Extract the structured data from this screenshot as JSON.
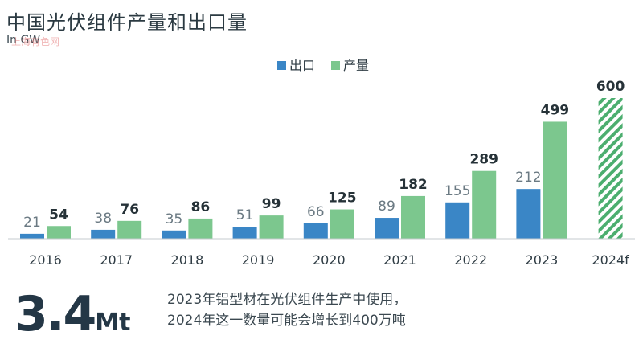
{
  "header": {
    "title": "中国光伏组件产量和出口量",
    "subtitle": "In GW",
    "watermark": "上海有色网"
  },
  "colors": {
    "export": "#3a86c6",
    "production": "#7cc78e",
    "forecast": "#4cae6f",
    "label_export": "#6b7a83",
    "label_production": "#263238",
    "axis": "#c5cbcf"
  },
  "chart_data": {
    "type": "bar",
    "categories": [
      "2016",
      "2017",
      "2018",
      "2019",
      "2020",
      "2021",
      "2022",
      "2023",
      "2024f"
    ],
    "series": [
      {
        "name": "出口",
        "values": [
          21,
          38,
          35,
          51,
          66,
          89,
          155,
          212,
          null
        ]
      },
      {
        "name": "产量",
        "values": [
          54,
          76,
          86,
          99,
          125,
          182,
          289,
          499,
          600
        ]
      }
    ],
    "forecast_category": "2024f",
    "legend_position": "top-center",
    "ylim": [
      0,
      600
    ],
    "grid": false
  },
  "footer": {
    "stat_value": "3.4",
    "stat_unit": "Mt",
    "note_line1": "2023年铝型材在光伏组件生产中使用，",
    "note_line2": "2024年这一数量可能会增长到400万吨"
  }
}
